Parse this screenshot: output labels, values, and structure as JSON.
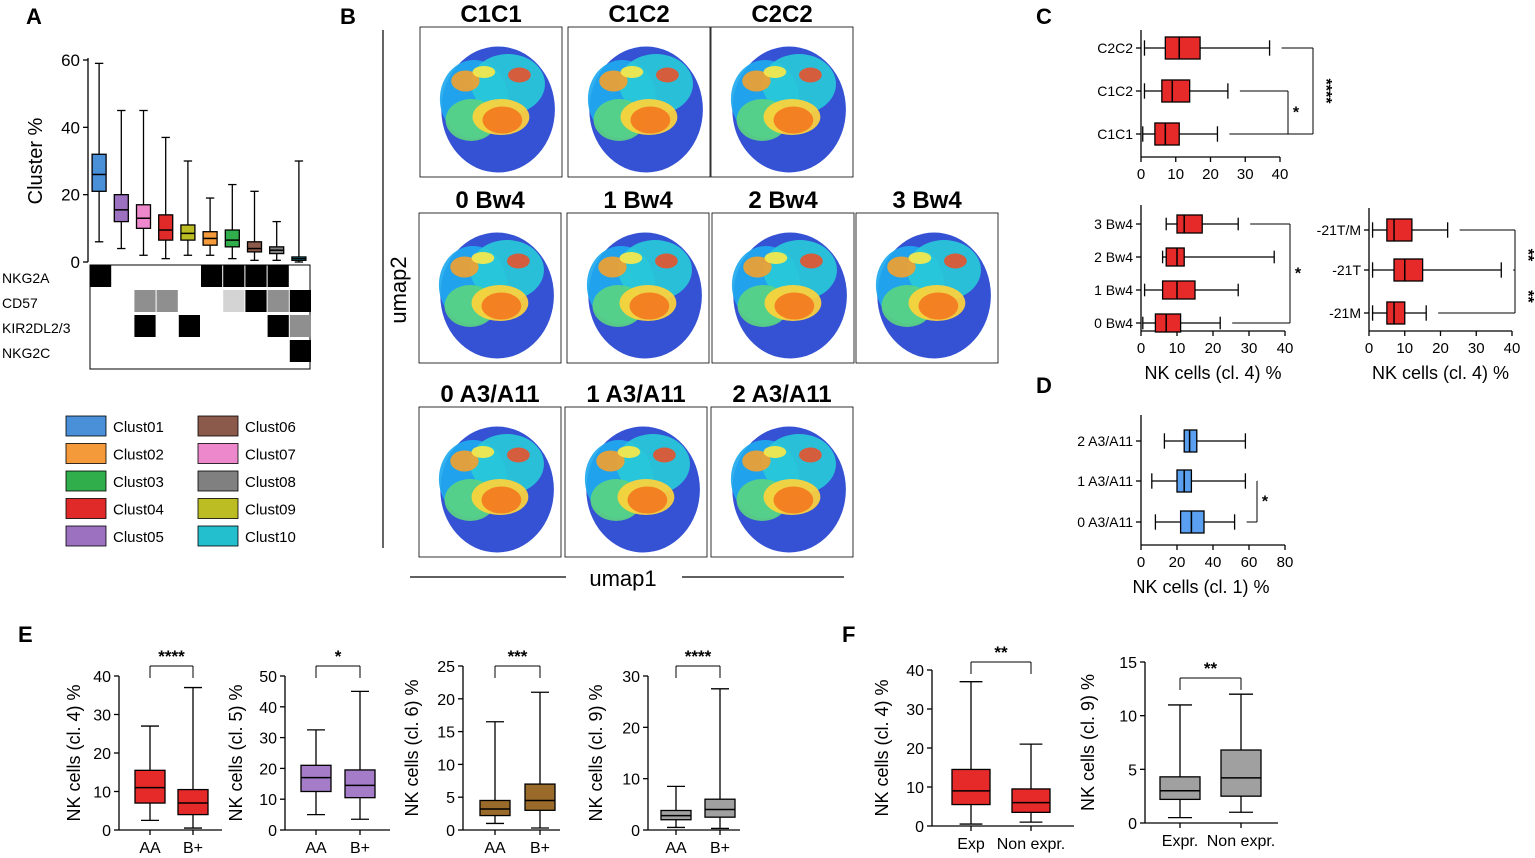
{
  "panel_labels": [
    "A",
    "B",
    "C",
    "D",
    "E",
    "F"
  ],
  "colors": {
    "Clust01": "#4a90d9",
    "Clust02": "#f59a3a",
    "Clust03": "#2fae4b",
    "Clust04": "#e02a2a",
    "Clust05": "#9b71c0",
    "Clust06": "#8c5a4a",
    "Clust07": "#ee88cc",
    "Clust08": "#808080",
    "Clust09": "#bcbd22",
    "Clust10": "#23bfcf",
    "red": "#e62a2a",
    "blue": "#5a9ff0",
    "purple": "#a47cc8",
    "brown": "#9a6a2a",
    "grey": "#a0a0a0"
  },
  "chart_data": [
    {
      "id": "A",
      "type": "box",
      "ylabel": "Cluster  %",
      "ylim": [
        0,
        60
      ],
      "yticks": [
        0,
        20,
        40,
        60
      ],
      "categories": [
        "Clust01",
        "Clust05",
        "Clust07",
        "Clust04",
        "Clust09",
        "Clust02",
        "Clust03",
        "Clust06",
        "Clust08",
        "Clust10"
      ],
      "boxes": [
        {
          "min": 6,
          "q1": 21,
          "med": 26,
          "q3": 32,
          "max": 59
        },
        {
          "min": 4,
          "q1": 12,
          "med": 15.5,
          "q3": 20,
          "max": 45
        },
        {
          "min": 2,
          "q1": 10,
          "med": 13,
          "q3": 17,
          "max": 45
        },
        {
          "min": 1,
          "q1": 6.5,
          "med": 9.5,
          "q3": 14,
          "max": 37
        },
        {
          "min": 2,
          "q1": 6.5,
          "med": 8.5,
          "q3": 11,
          "max": 30
        },
        {
          "min": 2,
          "q1": 5,
          "med": 7,
          "q3": 9,
          "max": 19
        },
        {
          "min": 1,
          "q1": 4.5,
          "med": 6.5,
          "q3": 9.5,
          "max": 23
        },
        {
          "min": 0.5,
          "q1": 3,
          "med": 4,
          "q3": 6,
          "max": 21
        },
        {
          "min": 0.5,
          "q1": 2.5,
          "med": 3.5,
          "q3": 4.5,
          "max": 12
        },
        {
          "min": 0,
          "q1": 0.5,
          "med": 1,
          "q3": 1.5,
          "max": 30
        }
      ],
      "marker_rows": [
        "NKG2A",
        "CD57",
        "KIR2DL2/3",
        "NKG2C"
      ],
      "marker_matrix": [
        [
          2,
          0,
          0,
          0,
          0,
          2,
          2,
          2,
          2,
          0
        ],
        [
          0,
          0,
          1,
          1,
          0,
          0,
          3,
          2,
          1,
          2
        ],
        [
          0,
          0,
          2,
          0,
          2,
          0,
          0,
          0,
          2,
          1
        ],
        [
          0,
          0,
          0,
          0,
          0,
          0,
          0,
          0,
          0,
          2
        ]
      ],
      "legend": [
        "Clust01",
        "Clust06",
        "Clust02",
        "Clust07",
        "Clust03",
        "Clust08",
        "Clust04",
        "Clust09",
        "Clust05",
        "Clust10"
      ]
    },
    {
      "id": "B",
      "type": "umap",
      "xlabel": "umap1",
      "ylabel": "umap2",
      "rows": [
        [
          "C1C1",
          "C1C2",
          "C2C2"
        ],
        [
          "0 Bw4",
          "1 Bw4",
          "2 Bw4",
          "3 Bw4"
        ],
        [
          "0 A3/A11",
          "1 A3/A11",
          "2 A3/A11"
        ]
      ]
    },
    {
      "id": "C1",
      "type": "hbox",
      "xlim": [
        0,
        40
      ],
      "xticks": [
        0,
        10,
        20,
        30,
        40
      ],
      "categories": [
        "C2C2",
        "C1C2",
        "C1C1"
      ],
      "color": "red",
      "boxes": [
        {
          "min": 1,
          "q1": 7,
          "med": 11,
          "q3": 17,
          "max": 37
        },
        {
          "min": 1,
          "q1": 6,
          "med": 9,
          "q3": 14,
          "max": 25
        },
        {
          "min": 0.5,
          "q1": 4,
          "med": 7,
          "q3": 11,
          "max": 22
        }
      ],
      "significance": [
        {
          "from": "C1C2",
          "to": "C1C1",
          "label": "*"
        },
        {
          "from": "C2C2",
          "to": "C1C1",
          "label": "****"
        }
      ]
    },
    {
      "id": "C2",
      "type": "hbox",
      "xlim": [
        0,
        40
      ],
      "xticks": [
        0,
        10,
        20,
        30,
        40
      ],
      "xlabel": "NK cells (cl. 4) %",
      "categories": [
        "3 Bw4",
        "2 Bw4",
        "1 Bw4",
        "0 Bw4"
      ],
      "color": "red",
      "boxes": [
        {
          "min": 7,
          "q1": 10,
          "med": 12,
          "q3": 17,
          "max": 27
        },
        {
          "min": 6,
          "q1": 7,
          "med": 10,
          "q3": 12,
          "max": 37
        },
        {
          "min": 1,
          "q1": 6,
          "med": 10,
          "q3": 15,
          "max": 27
        },
        {
          "min": 0.5,
          "q1": 4,
          "med": 7,
          "q3": 11,
          "max": 22
        }
      ],
      "significance": [
        {
          "from": "3 Bw4",
          "to": "0 Bw4",
          "label": "*"
        }
      ]
    },
    {
      "id": "C3",
      "type": "hbox",
      "xlim": [
        0,
        40
      ],
      "xticks": [
        0,
        10,
        20,
        30,
        40
      ],
      "xlabel": "NK cells (cl. 4) %",
      "categories": [
        "-21T/M",
        "-21T",
        "-21M"
      ],
      "color": "red",
      "boxes": [
        {
          "min": 1,
          "q1": 5,
          "med": 7,
          "q3": 12,
          "max": 22
        },
        {
          "min": 1,
          "q1": 7,
          "med": 10,
          "q3": 15,
          "max": 37
        },
        {
          "min": 1,
          "q1": 5,
          "med": 7,
          "q3": 10,
          "max": 16
        }
      ],
      "significance": [
        {
          "from": "-21T/M",
          "to": "-21T",
          "label": "**"
        },
        {
          "from": "-21T",
          "to": "-21M",
          "label": "**"
        }
      ]
    },
    {
      "id": "D",
      "type": "hbox",
      "xlim": [
        0,
        80
      ],
      "xticks": [
        0,
        20,
        40,
        60,
        80
      ],
      "xlabel": "NK cells (cl. 1) %",
      "categories": [
        "2 A3/A11",
        "1 A3/A11",
        "0 A3/A11"
      ],
      "color": "blue",
      "boxes": [
        {
          "min": 13,
          "q1": 24,
          "med": 27,
          "q3": 31,
          "max": 58
        },
        {
          "min": 6,
          "q1": 20,
          "med": 24,
          "q3": 28,
          "max": 58
        },
        {
          "min": 8,
          "q1": 22,
          "med": 28,
          "q3": 35,
          "max": 52
        }
      ],
      "significance": [
        {
          "from": "1 A3/A11",
          "to": "0 A3/A11",
          "label": "*"
        }
      ]
    },
    {
      "id": "E1",
      "type": "box",
      "ylabel": "NK cells (cl. 4) %",
      "ylim": [
        0,
        40
      ],
      "yticks": [
        0,
        10,
        20,
        30,
        40
      ],
      "categories": [
        "AA",
        "B+"
      ],
      "color": "red",
      "significance": "****",
      "boxes": [
        {
          "min": 2.5,
          "q1": 7,
          "med": 11,
          "q3": 15.5,
          "max": 27
        },
        {
          "min": 0.5,
          "q1": 4,
          "med": 7,
          "q3": 10.5,
          "max": 37
        }
      ]
    },
    {
      "id": "E2",
      "type": "box",
      "ylabel": "NK cells (cl. 5) %",
      "ylim": [
        0,
        50
      ],
      "yticks": [
        0,
        10,
        20,
        30,
        40,
        50
      ],
      "categories": [
        "AA",
        "B+"
      ],
      "color": "purple",
      "significance": "*",
      "boxes": [
        {
          "min": 5,
          "q1": 12.5,
          "med": 17,
          "q3": 21,
          "max": 32.5
        },
        {
          "min": 3.5,
          "q1": 10.5,
          "med": 14.5,
          "q3": 19.5,
          "max": 45
        }
      ]
    },
    {
      "id": "E3",
      "type": "box",
      "ylabel": "NK cells (cl. 6) %",
      "ylim": [
        0,
        25
      ],
      "yticks": [
        0,
        5,
        10,
        15,
        20,
        25
      ],
      "categories": [
        "AA",
        "B+"
      ],
      "color": "brown",
      "significance": "***",
      "boxes": [
        {
          "min": 1,
          "q1": 2.2,
          "med": 3.2,
          "q3": 4.5,
          "max": 16.5
        },
        {
          "min": 0.3,
          "q1": 3,
          "med": 4.5,
          "q3": 7,
          "max": 21
        }
      ]
    },
    {
      "id": "E4",
      "type": "box",
      "ylabel": "NK cells (cl. 9) %",
      "ylim": [
        0,
        30
      ],
      "yticks": [
        0,
        10,
        20,
        30
      ],
      "categories": [
        "AA",
        "B+"
      ],
      "color": "grey",
      "significance": "****",
      "boxes": [
        {
          "min": 0.5,
          "q1": 2,
          "med": 2.8,
          "q3": 3.8,
          "max": 8.5
        },
        {
          "min": 0.3,
          "q1": 2.5,
          "med": 4,
          "q3": 6,
          "max": 27.5
        }
      ]
    },
    {
      "id": "F1",
      "type": "box",
      "ylabel": "NK cells (cl. 4) %",
      "ylim": [
        0,
        40
      ],
      "yticks": [
        0,
        10,
        20,
        30,
        40
      ],
      "categories": [
        "Exp",
        "Non expr."
      ],
      "color": "red",
      "significance": "**",
      "boxes": [
        {
          "min": 0.5,
          "q1": 5.5,
          "med": 9,
          "q3": 14.5,
          "max": 37
        },
        {
          "min": 1,
          "q1": 3.5,
          "med": 6,
          "q3": 9.5,
          "max": 21
        }
      ]
    },
    {
      "id": "F2",
      "type": "box",
      "ylabel": "NK cells (cl. 9) %",
      "ylim": [
        0,
        15
      ],
      "yticks": [
        0,
        5,
        10,
        15
      ],
      "categories": [
        "Expr.",
        "Non expr."
      ],
      "color": "grey",
      "significance": "**",
      "boxes": [
        {
          "min": 0.5,
          "q1": 2.2,
          "med": 3,
          "q3": 4.3,
          "max": 11
        },
        {
          "min": 1,
          "q1": 2.5,
          "med": 4.2,
          "q3": 6.8,
          "max": 12
        }
      ]
    }
  ]
}
